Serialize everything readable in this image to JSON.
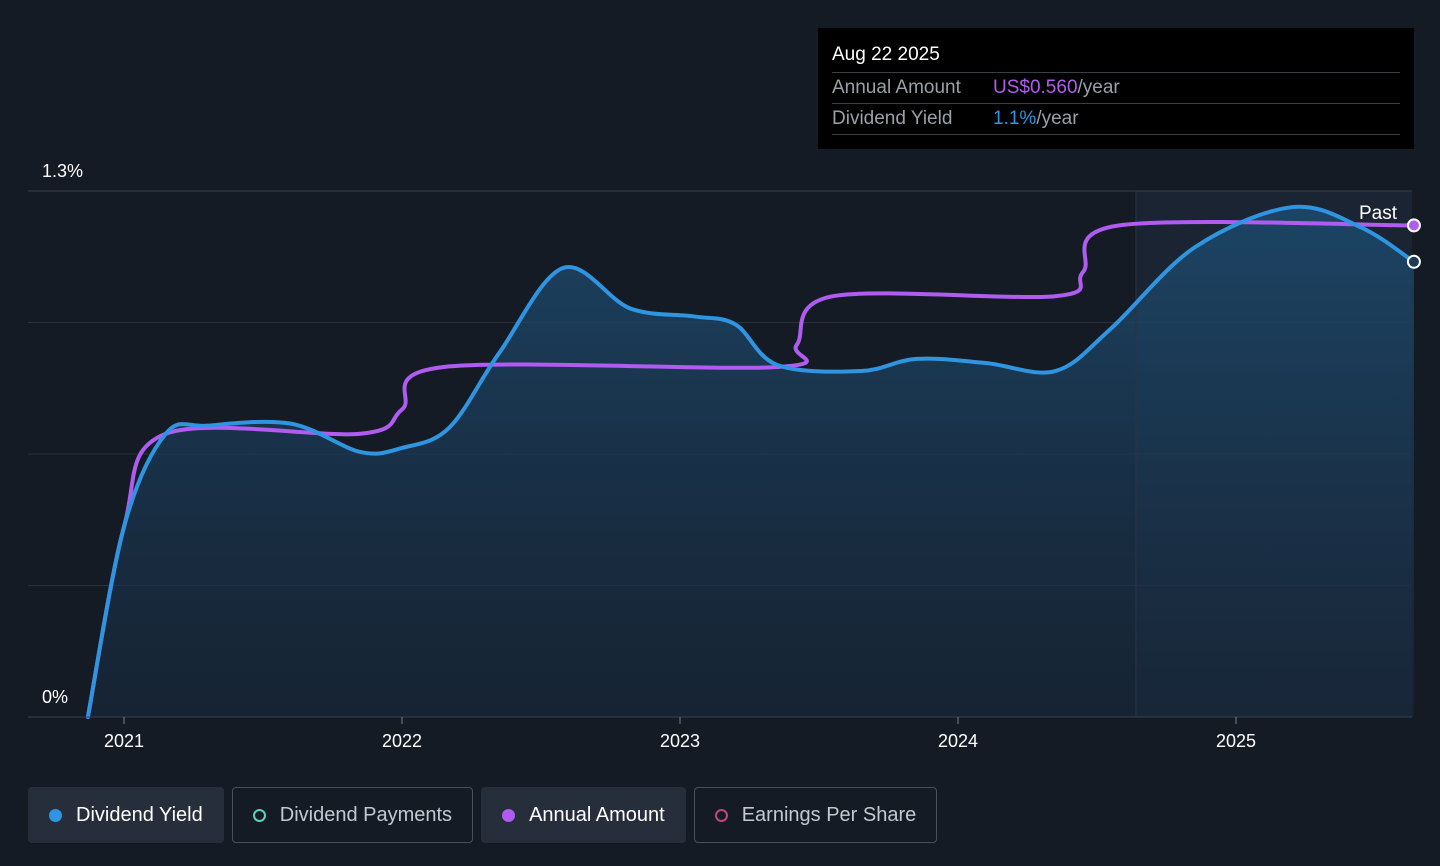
{
  "tooltip": {
    "date": "Aug 22 2025",
    "annual_amount_label": "Annual Amount",
    "annual_amount_value": "US$0.560",
    "annual_amount_unit": "/year",
    "dividend_yield_label": "Dividend Yield",
    "dividend_yield_value": "1.1%",
    "dividend_yield_unit": "/year"
  },
  "legend": [
    {
      "label": "Dividend Yield",
      "active": true
    },
    {
      "label": "Dividend Payments",
      "active": false
    },
    {
      "label": "Annual Amount",
      "active": true
    },
    {
      "label": "Earnings Per Share",
      "active": false
    }
  ],
  "colors": {
    "dividend_yield": "#2f95e0",
    "annual_amount": "#b05cf0",
    "dividend_payments": "#5fd0c0",
    "earnings_per_share": "#c2457a"
  },
  "chart_data": {
    "type": "area",
    "past_label": "Past",
    "ylim": [
      0,
      1.3
    ],
    "y_ticks": [
      {
        "value": 1.3,
        "label": "1.3%"
      },
      {
        "value": 0,
        "label": "0%"
      }
    ],
    "x_range": [
      2020.87,
      2025.64
    ],
    "x_ticks": [
      {
        "value": 2021,
        "label": "2021"
      },
      {
        "value": 2022,
        "label": "2022"
      },
      {
        "value": 2023,
        "label": "2023"
      },
      {
        "value": 2024,
        "label": "2024"
      },
      {
        "value": 2025,
        "label": "2025"
      }
    ],
    "past_start": 2024.64,
    "series": [
      {
        "name": "Dividend Yield",
        "values": [
          [
            2020.87,
            0.0
          ],
          [
            2021.0,
            0.47
          ],
          [
            2021.15,
            0.7
          ],
          [
            2021.3,
            0.72
          ],
          [
            2021.6,
            0.725
          ],
          [
            2021.85,
            0.655
          ],
          [
            2022.0,
            0.665
          ],
          [
            2022.17,
            0.715
          ],
          [
            2022.35,
            0.9
          ],
          [
            2022.58,
            1.11
          ],
          [
            2022.82,
            1.01
          ],
          [
            2023.05,
            0.99
          ],
          [
            2023.2,
            0.97
          ],
          [
            2023.35,
            0.87
          ],
          [
            2023.65,
            0.855
          ],
          [
            2023.85,
            0.885
          ],
          [
            2024.1,
            0.875
          ],
          [
            2024.35,
            0.855
          ],
          [
            2024.55,
            0.96
          ],
          [
            2024.85,
            1.16
          ],
          [
            2025.2,
            1.26
          ],
          [
            2025.45,
            1.21
          ],
          [
            2025.64,
            1.125
          ]
        ]
      },
      {
        "name": "Annual Amount",
        "values": [
          [
            2020.87,
            0.0
          ],
          [
            2021.0,
            0.47
          ],
          [
            2021.15,
            0.7
          ],
          [
            2021.85,
            0.7
          ],
          [
            2022.0,
            0.76
          ],
          [
            2022.15,
            0.865
          ],
          [
            2023.35,
            0.865
          ],
          [
            2023.42,
            0.92
          ],
          [
            2023.55,
            1.04
          ],
          [
            2024.35,
            1.04
          ],
          [
            2024.45,
            1.1
          ],
          [
            2024.58,
            1.215
          ],
          [
            2025.64,
            1.215
          ]
        ]
      }
    ]
  }
}
